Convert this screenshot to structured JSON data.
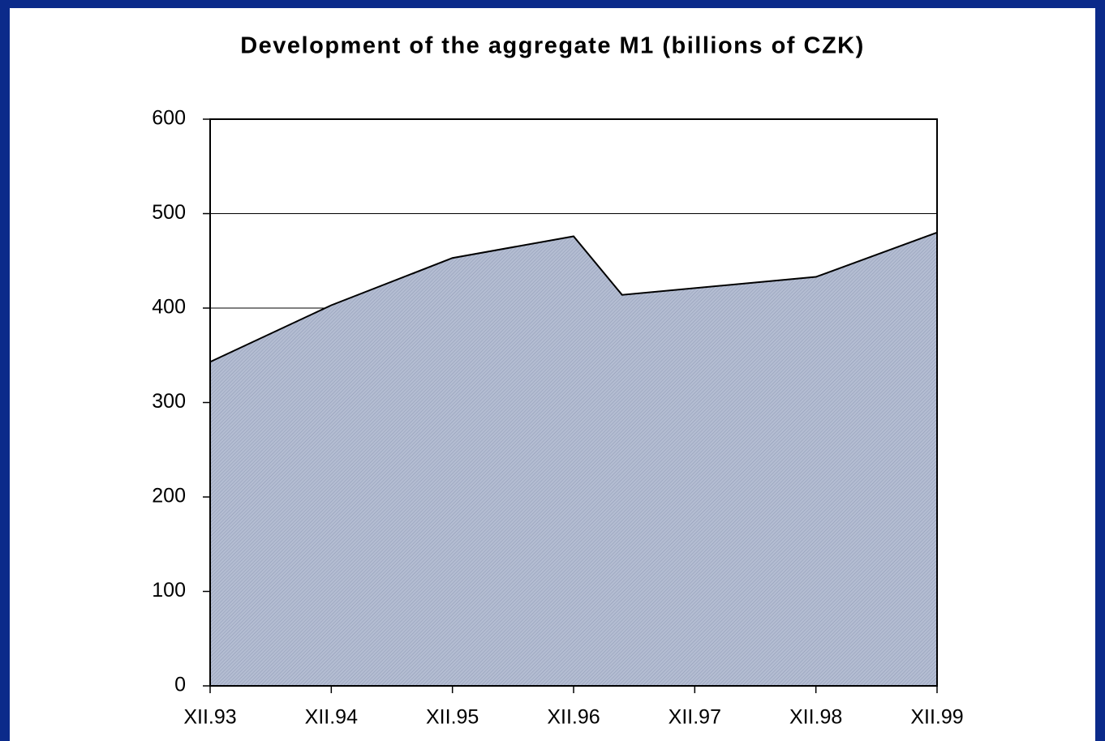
{
  "chart_data": {
    "type": "area",
    "title": "Development of the aggregate M1 (billions of CZK)",
    "x": [
      0,
      1,
      2,
      3,
      3.4,
      5,
      6
    ],
    "values": [
      343,
      403,
      453,
      476,
      414,
      433,
      480
    ],
    "color": "#b4bdd2",
    "xlim": [
      0,
      6
    ],
    "xticks": [
      {
        "value": 0,
        "label": "XII.93"
      },
      {
        "value": 1,
        "label": "XII.94"
      },
      {
        "value": 2,
        "label": "XII.95"
      },
      {
        "value": 3,
        "label": "XII.96"
      },
      {
        "value": 4,
        "label": "XII.97"
      },
      {
        "value": 5,
        "label": "XII.98"
      },
      {
        "value": 6,
        "label": "XII.99"
      }
    ],
    "ylim": [
      0,
      600
    ],
    "yticks": [
      0,
      100,
      200,
      300,
      400,
      500,
      600
    ],
    "grid": true
  }
}
